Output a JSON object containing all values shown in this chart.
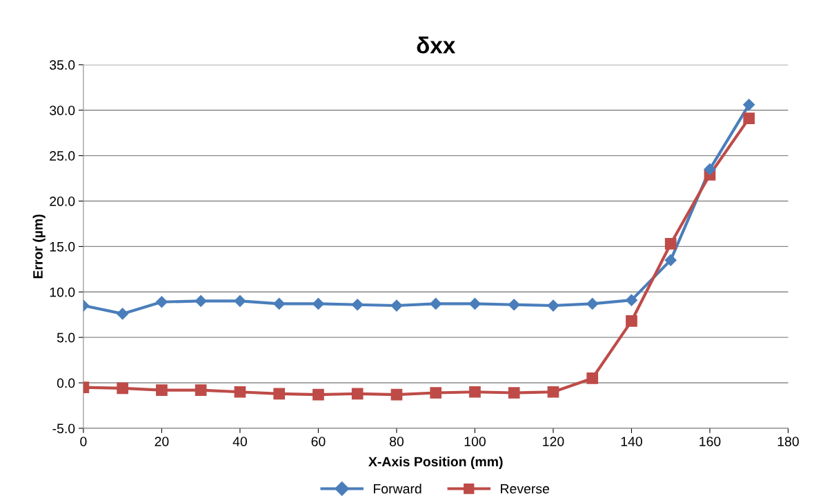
{
  "chart_data": {
    "type": "line",
    "title": "δxx",
    "xlabel": "X-Axis Position (mm)",
    "ylabel": "Error (µm)",
    "x": [
      0,
      10,
      20,
      30,
      40,
      50,
      60,
      70,
      80,
      90,
      100,
      110,
      120,
      130,
      140,
      150,
      160,
      170
    ],
    "series": [
      {
        "name": "Forward",
        "color": "#4a7ebb",
        "marker": "diamond",
        "values": [
          8.5,
          7.6,
          8.9,
          9.0,
          9.0,
          8.7,
          8.7,
          8.6,
          8.5,
          8.7,
          8.7,
          8.6,
          8.5,
          8.7,
          9.1,
          13.5,
          23.5,
          30.6
        ]
      },
      {
        "name": "Reverse",
        "color": "#be4b48",
        "marker": "square",
        "values": [
          -0.5,
          -0.6,
          -0.8,
          -0.8,
          -1.0,
          -1.2,
          -1.3,
          -1.2,
          -1.3,
          -1.1,
          -1.0,
          -1.1,
          -1.0,
          0.5,
          6.8,
          15.3,
          22.9,
          29.1
        ]
      }
    ],
    "xlim": [
      0,
      180
    ],
    "xticks": [
      0,
      20,
      40,
      60,
      80,
      100,
      120,
      140,
      160,
      180
    ],
    "ylim": [
      -5,
      35
    ],
    "yticks": [
      {
        "value": -5,
        "label": "-5.0"
      },
      {
        "value": 0,
        "label": "0.0"
      },
      {
        "value": 5,
        "label": "5.0"
      },
      {
        "value": 10,
        "label": "10.0"
      },
      {
        "value": 15,
        "label": "15.0"
      },
      {
        "value": 20,
        "label": "20.0"
      },
      {
        "value": 25,
        "label": "25.0"
      },
      {
        "value": 30,
        "label": "30.0"
      },
      {
        "value": 35,
        "label": "35.0"
      }
    ],
    "grid": "y",
    "legend": "bottom",
    "line_style": "solid"
  }
}
